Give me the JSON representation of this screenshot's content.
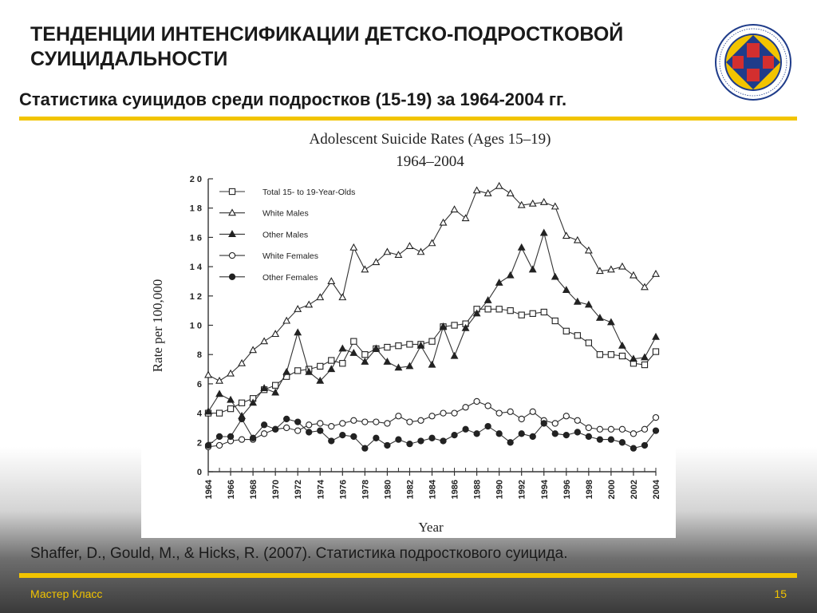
{
  "slide": {
    "title": "ТЕНДЕНЦИИ ИНТЕНСИФИКАЦИИ ДЕТСКО-ПОДРОСТКОВОЙ СУИЦИДАЛЬНОСТИ",
    "subtitle": "Статистика суицидов среди подростков (15-19) за 1964-2004 гг.",
    "citation": "Shaffer, D., Gould, M., & Hicks, R. (2007). Статистика подросткового суицида.",
    "footer_left": "Мастер Класс",
    "page_number": "15",
    "accent_color": "#f2c400",
    "logo_icon": "university-seal-icon"
  },
  "chart_data": {
    "type": "line",
    "title": "Adolescent Suicide Rates (Ages 15–19)",
    "subtitle": "1964–2004",
    "xlabel": "Year",
    "ylabel": "Rate per 100,000",
    "xlim": [
      1964,
      2004
    ],
    "ylim": [
      0,
      20
    ],
    "x_ticks": [
      "1964",
      "1966",
      "1968",
      "1970",
      "1972",
      "1974",
      "1976",
      "1978",
      "1980",
      "1982",
      "1984",
      "1986",
      "1988",
      "1990",
      "1992",
      "1994",
      "1996",
      "1998",
      "2000",
      "2002",
      "2004"
    ],
    "y_ticks": [
      "0",
      "2",
      "4",
      "6",
      "8",
      "1 0",
      "1 2",
      "1 4",
      "1 6",
      "1 8",
      "2 0"
    ],
    "y_tick_values": [
      0,
      2,
      4,
      6,
      8,
      10,
      12,
      14,
      16,
      18,
      20
    ],
    "legend_position": "top-left",
    "grid": false,
    "x": [
      1964,
      1965,
      1966,
      1967,
      1968,
      1969,
      1970,
      1971,
      1972,
      1973,
      1974,
      1975,
      1976,
      1977,
      1978,
      1979,
      1980,
      1981,
      1982,
      1983,
      1984,
      1985,
      1986,
      1987,
      1988,
      1989,
      1990,
      1991,
      1992,
      1993,
      1994,
      1995,
      1996,
      1997,
      1998,
      1999,
      2000,
      2001,
      2002,
      2003,
      2004
    ],
    "series": [
      {
        "name": "Total 15- to 19-Year-Olds",
        "marker": "square-open",
        "values": [
          4.0,
          4.0,
          4.3,
          4.7,
          5.0,
          5.6,
          5.9,
          6.5,
          6.9,
          7.0,
          7.2,
          7.6,
          7.4,
          8.9,
          8.0,
          8.4,
          8.5,
          8.6,
          8.7,
          8.7,
          8.9,
          9.9,
          10.0,
          10.1,
          11.1,
          11.1,
          11.1,
          11.0,
          10.7,
          10.8,
          10.9,
          10.3,
          9.6,
          9.3,
          8.8,
          8.0,
          8.0,
          7.9,
          7.4,
          7.3,
          8.2
        ]
      },
      {
        "name": "White Males",
        "marker": "triangle-open",
        "values": [
          6.6,
          6.2,
          6.7,
          7.4,
          8.3,
          8.9,
          9.4,
          10.3,
          11.1,
          11.4,
          11.9,
          13.0,
          11.9,
          15.3,
          13.8,
          14.3,
          15.0,
          14.8,
          15.4,
          15.0,
          15.6,
          17.0,
          17.9,
          17.3,
          19.2,
          19.0,
          19.5,
          19.0,
          18.2,
          18.3,
          18.4,
          18.1,
          16.1,
          15.8,
          15.1,
          13.7,
          13.8,
          14.0,
          13.4,
          12.6,
          13.5
        ]
      },
      {
        "name": "Other Males",
        "marker": "triangle-filled",
        "values": [
          4.1,
          5.3,
          4.9,
          3.8,
          4.7,
          5.7,
          5.4,
          6.8,
          9.5,
          6.8,
          6.2,
          7.0,
          8.4,
          8.1,
          7.5,
          8.4,
          7.5,
          7.1,
          7.2,
          8.6,
          7.3,
          9.9,
          7.9,
          9.8,
          10.8,
          11.7,
          12.9,
          13.4,
          15.3,
          13.8,
          16.3,
          13.3,
          12.4,
          11.6,
          11.4,
          10.5,
          10.2,
          8.6,
          7.7,
          7.8,
          9.2
        ]
      },
      {
        "name": "White Females",
        "marker": "circle-open",
        "values": [
          1.7,
          1.8,
          2.1,
          2.2,
          2.2,
          2.6,
          2.9,
          3.0,
          2.8,
          3.2,
          3.3,
          3.1,
          3.3,
          3.5,
          3.4,
          3.4,
          3.3,
          3.8,
          3.4,
          3.5,
          3.8,
          4.0,
          4.0,
          4.4,
          4.8,
          4.5,
          4.0,
          4.1,
          3.6,
          4.1,
          3.5,
          3.3,
          3.8,
          3.5,
          3.0,
          2.9,
          2.9,
          2.9,
          2.6,
          2.9,
          3.7
        ]
      },
      {
        "name": "Other Females",
        "marker": "circle-filled",
        "values": [
          1.8,
          2.4,
          2.4,
          3.6,
          2.3,
          3.2,
          2.9,
          3.6,
          3.4,
          2.7,
          2.8,
          2.1,
          2.5,
          2.4,
          1.6,
          2.3,
          1.8,
          2.2,
          1.9,
          2.1,
          2.3,
          2.1,
          2.5,
          2.9,
          2.6,
          3.1,
          2.6,
          2.0,
          2.6,
          2.4,
          3.3,
          2.6,
          2.5,
          2.7,
          2.4,
          2.2,
          2.2,
          2.0,
          1.6,
          1.8,
          2.8
        ]
      }
    ]
  }
}
